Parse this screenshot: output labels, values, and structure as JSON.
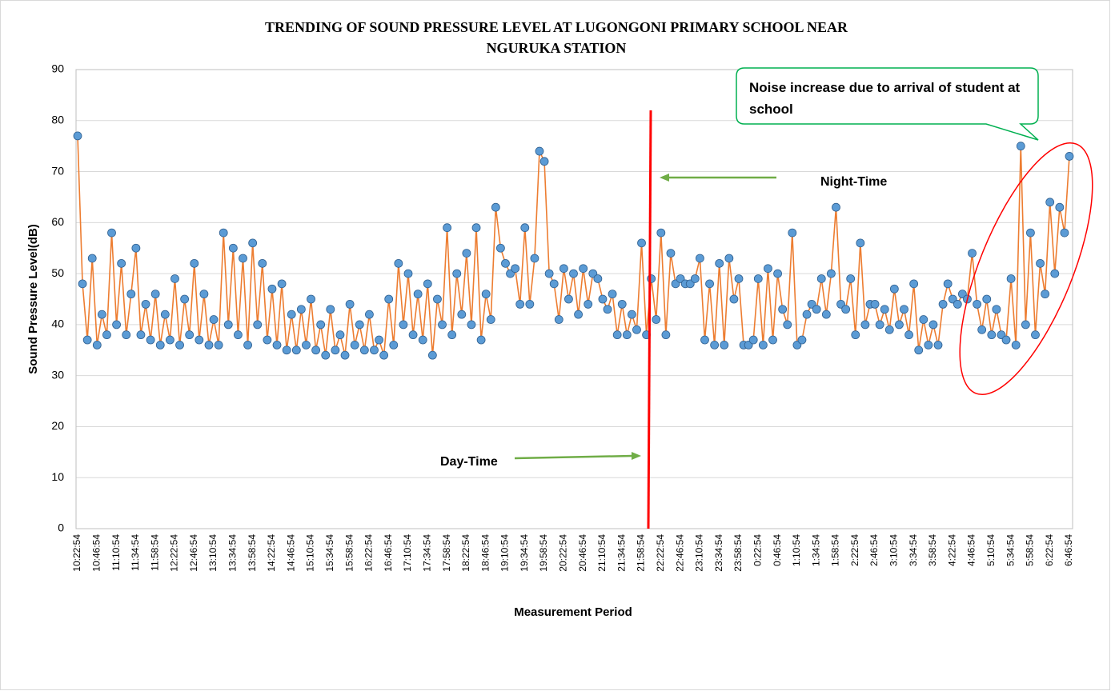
{
  "chart_data": {
    "type": "line",
    "title": "TRENDING OF SOUND PRESSURE LEVEL AT LUGONGONI PRIMARY SCHOOL NEAR NGURUKA STATION",
    "xlabel": "Measurement Period",
    "ylabel": "Sound Pressure Level(dB)",
    "ylim": [
      0,
      90
    ],
    "yticks": [
      0,
      10,
      20,
      30,
      40,
      50,
      60,
      70,
      80,
      90
    ],
    "grid": true,
    "line_color": "#ED7D31",
    "marker_color": "#5B9BD5",
    "annotations": [
      "Night-Time",
      "Day-Time",
      "Noise increase due to arrival of student at school"
    ],
    "categories": [
      "10:22:54",
      null,
      null,
      null,
      "10:46:54",
      null,
      null,
      null,
      "11:10:54",
      null,
      null,
      null,
      "11:34:54",
      null,
      null,
      null,
      "11:58:54",
      null,
      null,
      null,
      "12:22:54",
      null,
      null,
      null,
      "12:46:54",
      null,
      null,
      null,
      "13:10:54",
      null,
      null,
      null,
      "13:34:54",
      null,
      null,
      null,
      "13:58:54",
      null,
      null,
      null,
      "14:22:54",
      null,
      null,
      null,
      "14:46:54",
      null,
      null,
      null,
      "15:10:54",
      null,
      null,
      null,
      "15:34:54",
      null,
      null,
      null,
      "15:58:54",
      null,
      null,
      null,
      "16:22:54",
      null,
      null,
      null,
      "16:46:54",
      null,
      null,
      null,
      "17:10:54",
      null,
      null,
      null,
      "17:34:54",
      null,
      null,
      null,
      "17:58:54",
      null,
      null,
      null,
      "18:22:54",
      null,
      null,
      null,
      "18:46:54",
      null,
      null,
      null,
      "19:10:54",
      null,
      null,
      null,
      "19:34:54",
      null,
      null,
      null,
      "19:58:54",
      null,
      null,
      null,
      "20:22:54",
      null,
      null,
      null,
      "20:46:54",
      null,
      null,
      null,
      "21:10:54",
      null,
      null,
      null,
      "21:34:54",
      null,
      null,
      null,
      "21:58:54",
      null,
      null,
      null,
      "22:22:54",
      null,
      null,
      null,
      "22:46:54",
      null,
      null,
      null,
      "23:10:54",
      null,
      null,
      null,
      "23:34:54",
      null,
      null,
      null,
      "23:58:54",
      null,
      null,
      null,
      "0:22:54",
      null,
      null,
      null,
      "0:46:54",
      null,
      null,
      null,
      "1:10:54",
      null,
      null,
      null,
      "1:34:54",
      null,
      null,
      null,
      "1:58:54",
      null,
      null,
      null,
      "2:22:54",
      null,
      null,
      null,
      "2:46:54",
      null,
      null,
      null,
      "3:10:54",
      null,
      null,
      null,
      "3:34:54",
      null,
      null,
      null,
      "3:58:54",
      null,
      null,
      null,
      "4:22:54",
      null,
      null,
      null,
      "4:46:54",
      null,
      null,
      null,
      "5:10:54",
      null,
      null,
      null,
      "5:34:54",
      null,
      null,
      null,
      "5:58:54",
      null,
      null,
      null,
      "6:22:54",
      null,
      null,
      null,
      "6:46:54"
    ],
    "values": [
      77,
      48,
      37,
      53,
      36,
      42,
      38,
      58,
      40,
      52,
      38,
      46,
      55,
      38,
      44,
      37,
      46,
      36,
      42,
      37,
      49,
      36,
      45,
      38,
      52,
      37,
      46,
      36,
      41,
      36,
      58,
      40,
      55,
      38,
      53,
      36,
      56,
      40,
      52,
      37,
      47,
      36,
      48,
      35,
      42,
      35,
      43,
      36,
      45,
      35,
      40,
      34,
      43,
      35,
      38,
      34,
      44,
      36,
      40,
      35,
      42,
      35,
      37,
      34,
      45,
      36,
      52,
      40,
      50,
      38,
      46,
      37,
      48,
      34,
      45,
      40,
      59,
      38,
      50,
      42,
      54,
      40,
      59,
      37,
      46,
      41,
      63,
      55,
      52,
      50,
      51,
      44,
      59,
      44,
      53,
      74,
      72,
      50,
      48,
      41,
      51,
      45,
      50,
      42,
      51,
      44,
      50,
      49,
      45,
      43,
      46,
      38,
      44,
      38,
      42,
      39,
      56,
      38,
      49,
      41,
      58,
      38,
      54,
      48,
      49,
      48,
      48,
      49,
      53,
      37,
      48,
      36,
      52,
      36,
      53,
      45,
      49,
      36,
      36,
      37,
      49,
      36,
      51,
      37,
      50,
      43,
      40,
      58,
      36,
      37,
      42,
      44,
      43,
      49,
      42,
      50,
      63,
      44,
      43,
      49,
      38,
      56,
      40,
      44,
      44,
      40,
      43,
      39,
      47,
      40,
      43,
      38,
      48,
      35,
      41,
      36,
      40,
      36,
      44,
      48,
      45,
      44,
      46,
      45,
      54,
      44,
      39,
      45,
      38,
      43,
      38,
      37,
      49,
      36,
      75,
      40,
      58,
      38,
      52,
      46,
      64,
      50,
      63,
      58,
      73
    ]
  }
}
